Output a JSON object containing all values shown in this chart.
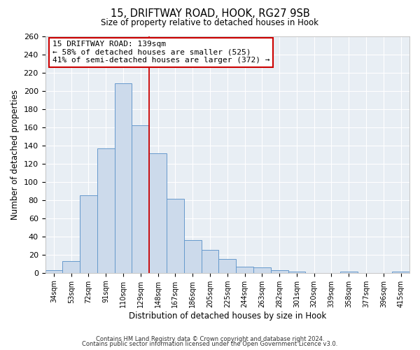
{
  "title1": "15, DRIFTWAY ROAD, HOOK, RG27 9SB",
  "title2": "Size of property relative to detached houses in Hook",
  "xlabel": "Distribution of detached houses by size in Hook",
  "ylabel": "Number of detached properties",
  "bar_labels": [
    "34sqm",
    "53sqm",
    "72sqm",
    "91sqm",
    "110sqm",
    "129sqm",
    "148sqm",
    "167sqm",
    "186sqm",
    "205sqm",
    "225sqm",
    "244sqm",
    "263sqm",
    "282sqm",
    "301sqm",
    "320sqm",
    "339sqm",
    "358sqm",
    "377sqm",
    "396sqm",
    "415sqm"
  ],
  "bar_values": [
    3,
    13,
    85,
    137,
    208,
    162,
    131,
    81,
    36,
    25,
    15,
    7,
    6,
    3,
    1,
    0,
    0,
    1,
    0,
    0,
    1
  ],
  "bar_color_face": "#ccdaeb",
  "bar_color_edge": "#6699cc",
  "vline_x": 5.5,
  "vline_color": "#cc0000",
  "annotation_line1": "15 DRIFTWAY ROAD: 139sqm",
  "annotation_line2": "← 58% of detached houses are smaller (525)",
  "annotation_line3": "41% of semi-detached houses are larger (372) →",
  "box_color": "#cc0000",
  "ylim": [
    0,
    260
  ],
  "yticks": [
    0,
    20,
    40,
    60,
    80,
    100,
    120,
    140,
    160,
    180,
    200,
    220,
    240,
    260
  ],
  "footer1": "Contains HM Land Registry data © Crown copyright and database right 2024.",
  "footer2": "Contains public sector information licensed under the Open Government Licence v3.0.",
  "bg_color": "#e8eef4"
}
